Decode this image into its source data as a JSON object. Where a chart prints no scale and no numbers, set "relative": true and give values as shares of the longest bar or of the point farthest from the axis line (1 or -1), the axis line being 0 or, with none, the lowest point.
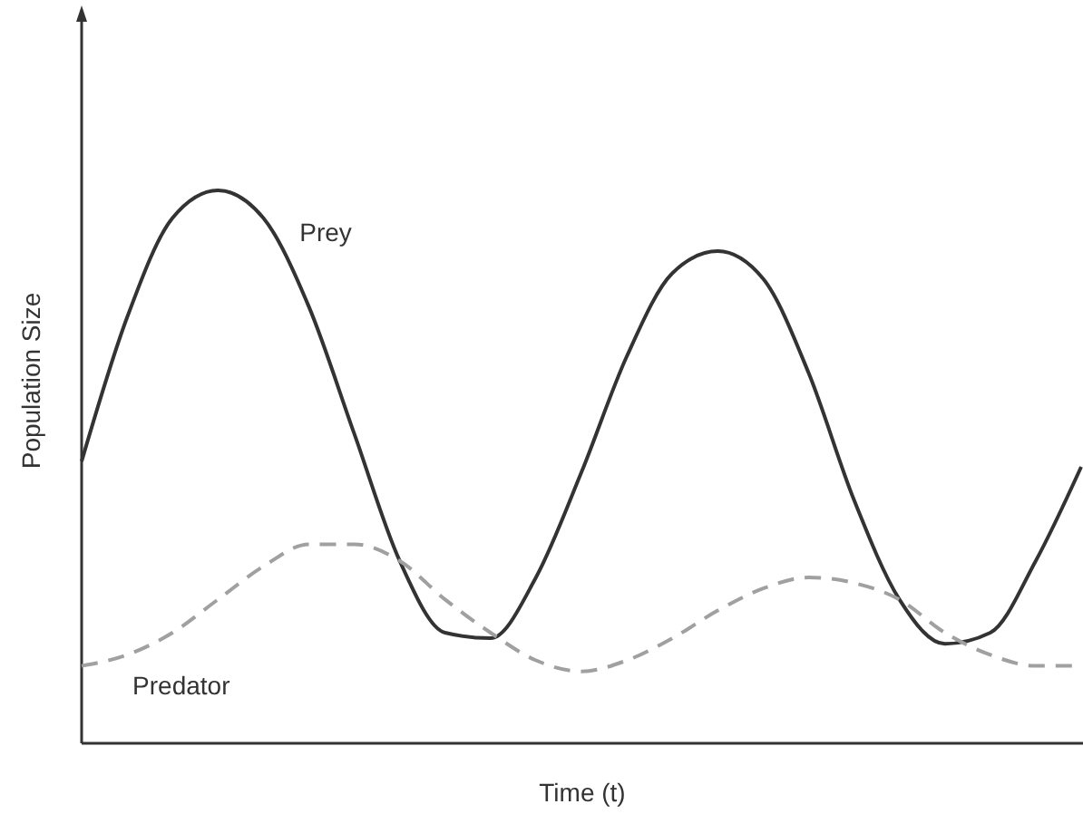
{
  "chart_data": {
    "type": "line",
    "relative": true,
    "xlabel": "Time (t)",
    "ylabel": "Population Size",
    "categories": [
      null,
      null,
      null,
      null,
      null,
      null,
      null,
      null,
      null,
      null,
      null,
      null,
      null,
      null,
      null,
      null,
      null,
      null,
      null,
      null,
      null,
      null,
      null
    ],
    "series": [
      {
        "name": "Prey",
        "color": "#333333",
        "line_style": "solid",
        "values": [
          0.51,
          0.77,
          0.95,
          1,
          0.95,
          0.79,
          0.56,
          0.33,
          0.2,
          0.19,
          0.3,
          0.49,
          0.7,
          0.85,
          0.89,
          0.84,
          0.67,
          0.44,
          0.26,
          0.18,
          0.2,
          0.33,
          0.5
        ]
      },
      {
        "name": "Predator",
        "color": "#a0a0a0",
        "line_style": "dashed",
        "values": [
          0.14,
          0.16,
          0.2,
          0.26,
          0.32,
          0.36,
          0.36,
          0.33,
          0.26,
          0.2,
          0.15,
          0.13,
          0.15,
          0.19,
          0.24,
          0.28,
          0.3,
          0.29,
          0.26,
          0.2,
          0.16,
          0.14,
          0.14
        ]
      }
    ]
  }
}
